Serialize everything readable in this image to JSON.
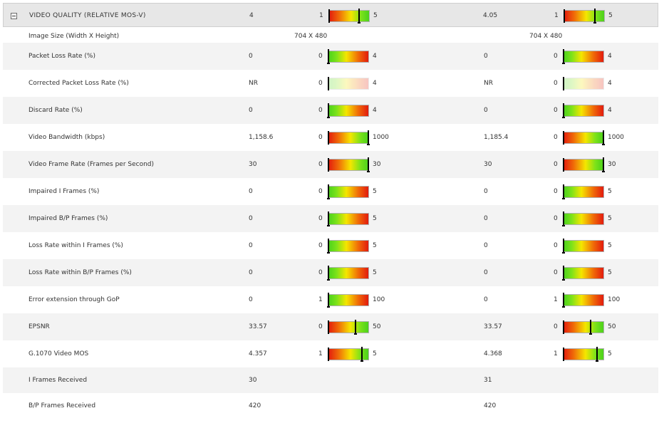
{
  "header": {
    "title": "VIDEO QUALITY (RELATIVE MOS-V)",
    "value_a": "4",
    "gauge_a": {
      "min": "1",
      "max": "5",
      "value": 4,
      "lo": 1,
      "hi": 5,
      "scheme": "r2g"
    },
    "value_b": "4.05",
    "gauge_b": {
      "min": "1",
      "max": "5",
      "value": 4.05,
      "lo": 1,
      "hi": 5,
      "scheme": "r2g"
    }
  },
  "image_size": {
    "label": "Image Size (Width X Height)",
    "value_a": "704 X 480",
    "value_b": "704 X 480"
  },
  "rows": [
    {
      "label": "Packet Loss Rate (%)",
      "value_a": "0",
      "value_b": "0",
      "gauge": {
        "min": "0",
        "max": "4",
        "lo": 0,
        "hi": 4,
        "scheme": "g2r",
        "a": 0,
        "b": 0
      }
    },
    {
      "label": "Corrected Packet Loss Rate (%)",
      "value_a": "NR",
      "value_b": "NR",
      "gauge": {
        "min": "0",
        "max": "4",
        "lo": 0,
        "hi": 4,
        "scheme": "g2r",
        "a": null,
        "b": null
      }
    },
    {
      "label": "Discard Rate (%)",
      "value_a": "0",
      "value_b": "0",
      "gauge": {
        "min": "0",
        "max": "4",
        "lo": 0,
        "hi": 4,
        "scheme": "g2r",
        "a": 0,
        "b": 0
      }
    },
    {
      "label": "Video Bandwidth (kbps)",
      "value_a": "1,158.6",
      "value_b": "1,185.4",
      "gauge": {
        "min": "0",
        "max": "1000",
        "lo": 0,
        "hi": 1000,
        "scheme": "r2g",
        "a": 1000,
        "b": 1000
      }
    },
    {
      "label": "Video Frame Rate (Frames per Second)",
      "value_a": "30",
      "value_b": "30",
      "gauge": {
        "min": "0",
        "max": "30",
        "lo": 0,
        "hi": 30,
        "scheme": "r2g",
        "a": 30,
        "b": 30
      }
    },
    {
      "label": "Impaired I Frames (%)",
      "value_a": "0",
      "value_b": "0",
      "gauge": {
        "min": "0",
        "max": "5",
        "lo": 0,
        "hi": 5,
        "scheme": "g2r",
        "a": 0,
        "b": 0
      }
    },
    {
      "label": "Impaired B/P Frames (%)",
      "value_a": "0",
      "value_b": "0",
      "gauge": {
        "min": "0",
        "max": "5",
        "lo": 0,
        "hi": 5,
        "scheme": "g2r",
        "a": 0,
        "b": 0
      }
    },
    {
      "label": "Loss Rate within I Frames (%)",
      "value_a": "0",
      "value_b": "0",
      "gauge": {
        "min": "0",
        "max": "5",
        "lo": 0,
        "hi": 5,
        "scheme": "g2r",
        "a": 0,
        "b": 0
      }
    },
    {
      "label": "Loss Rate within B/P Frames (%)",
      "value_a": "0",
      "value_b": "0",
      "gauge": {
        "min": "0",
        "max": "5",
        "lo": 0,
        "hi": 5,
        "scheme": "g2r",
        "a": 0,
        "b": 0
      }
    },
    {
      "label": "Error extension through GoP",
      "value_a": "0",
      "value_b": "0",
      "gauge": {
        "min": "1",
        "max": "100",
        "lo": 1,
        "hi": 100,
        "scheme": "g2r",
        "a": 1,
        "b": 1
      }
    },
    {
      "label": "EPSNR",
      "value_a": "33.57",
      "value_b": "33.57",
      "gauge": {
        "min": "0",
        "max": "50",
        "lo": 0,
        "hi": 50,
        "scheme": "r2g",
        "a": 33.57,
        "b": 33.57
      }
    },
    {
      "label": "G.1070 Video MOS",
      "value_a": "4.357",
      "value_b": "4.368",
      "gauge": {
        "min": "1",
        "max": "5",
        "lo": 1,
        "hi": 5,
        "scheme": "r2g",
        "a": 4.357,
        "b": 4.368
      }
    }
  ],
  "plain_rows": [
    {
      "label": "I Frames Received",
      "value_a": "30",
      "value_b": "31"
    },
    {
      "label": "B/P Frames Received",
      "value_a": "420",
      "value_b": "420"
    }
  ]
}
